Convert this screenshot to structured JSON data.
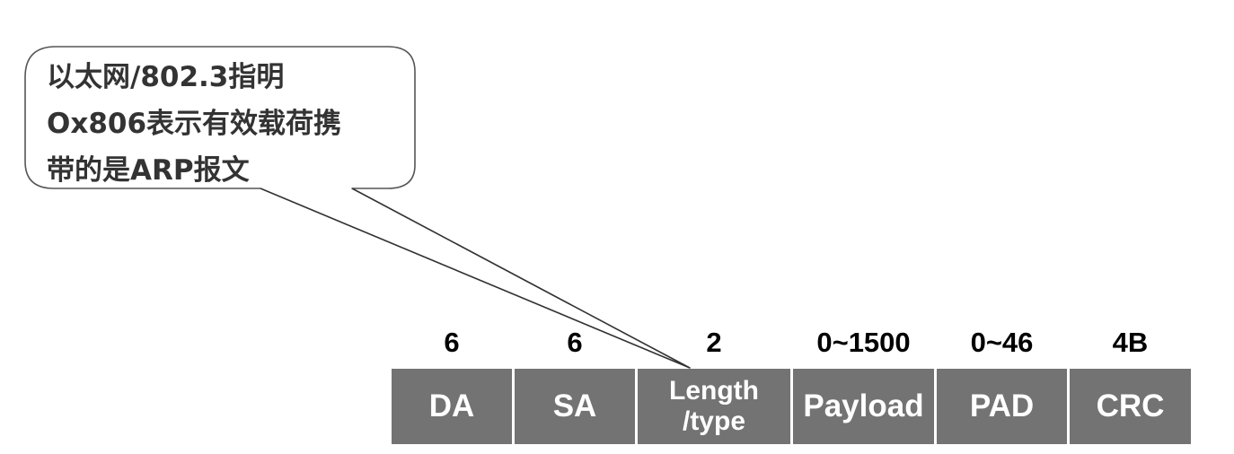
{
  "callout": {
    "lines": [
      "以太网/802.3指明",
      "Ox806表示有效载荷携",
      "带的是ARP报文"
    ],
    "border_color": "#555555",
    "pointer_color": "#333333"
  },
  "frame": {
    "fill_color": "#737373",
    "fields": [
      {
        "size": "6",
        "label": "DA"
      },
      {
        "size": "6",
        "label": "SA"
      },
      {
        "size": "2",
        "label_line1": "Length",
        "label_line2": "/type"
      },
      {
        "size": "0~1500",
        "label": "Payload"
      },
      {
        "size": "0~46",
        "label": "PAD"
      },
      {
        "size": "4B",
        "label": "CRC"
      }
    ]
  }
}
